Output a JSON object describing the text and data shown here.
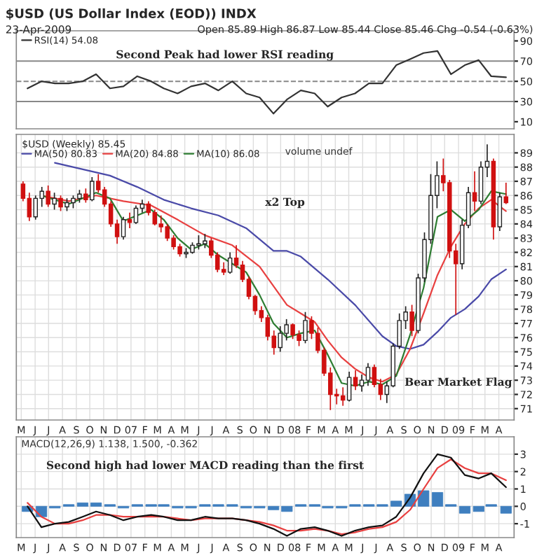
{
  "chart_data": [
    {
      "type": "line",
      "title": "$USD (US Dollar Index (EOD)) INDX",
      "subtitle": "23-Apr-2009",
      "annotations": [
        "Open 85.89 High 86.87 Low 85.44 Close 85.46 Chg -0.54 (-0.63%)",
        "Second Peak had lower RSI reading"
      ],
      "series": [
        {
          "name": "RSI(14) 54.08",
          "color": "#333333",
          "x": [
            "2006-05-15",
            "2006-06-15",
            "2006-07-15",
            "2006-08-15",
            "2006-09-15",
            "2006-10-15",
            "2006-11-15",
            "2006-12-15",
            "2007-01-15",
            "2007-02-15",
            "2007-03-15",
            "2007-04-15",
            "2007-05-15",
            "2007-06-15",
            "2007-07-15",
            "2007-08-15",
            "2007-09-15",
            "2007-10-15",
            "2007-11-15",
            "2007-12-15",
            "2008-01-15",
            "2008-02-15",
            "2008-03-15",
            "2008-04-15",
            "2008-05-15",
            "2008-06-15",
            "2008-07-15",
            "2008-08-15",
            "2008-09-15",
            "2008-10-15",
            "2008-11-15",
            "2008-12-15",
            "2009-01-15",
            "2009-02-15",
            "2009-03-15",
            "2009-04-17"
          ],
          "values": [
            43,
            50,
            48,
            48,
            50,
            57,
            43,
            45,
            55,
            50,
            43,
            38,
            45,
            48,
            41,
            50,
            38,
            34,
            18,
            32,
            41,
            38,
            25,
            34,
            38,
            48,
            48,
            66,
            72,
            78,
            80,
            57,
            66,
            71,
            55,
            54
          ]
        }
      ],
      "xlim": [
        "2006-04-20",
        "2009-05-05"
      ],
      "ylim": [
        3,
        100
      ],
      "yticks": [
        10,
        30,
        50,
        70,
        90
      ],
      "ref_lines": [
        {
          "axis": "y",
          "value": 70,
          "color": "#888888",
          "line_style": "solid"
        },
        {
          "axis": "y",
          "value": 30,
          "color": "#888888",
          "line_style": "solid"
        },
        {
          "axis": "y",
          "value": 50,
          "color": "#888888",
          "line_style": "dashed"
        }
      ],
      "legend": "top left",
      "tick_labels": "y"
    },
    {
      "type": "candlestick",
      "legend_title": "$USD (Weekly) 85.45",
      "x": [
        "2006-05-05",
        "2006-05-19",
        "2006-06-02",
        "2006-06-16",
        "2006-06-30",
        "2006-07-14",
        "2006-07-28",
        "2006-08-11",
        "2006-08-25",
        "2006-09-08",
        "2006-09-22",
        "2006-10-06",
        "2006-10-20",
        "2006-11-03",
        "2006-11-17",
        "2006-12-01",
        "2006-12-15",
        "2006-12-29",
        "2007-01-12",
        "2007-01-26",
        "2007-02-09",
        "2007-02-23",
        "2007-03-09",
        "2007-03-23",
        "2007-04-06",
        "2007-04-20",
        "2007-05-04",
        "2007-05-18",
        "2007-06-01",
        "2007-06-15",
        "2007-06-29",
        "2007-07-13",
        "2007-07-27",
        "2007-08-10",
        "2007-08-24",
        "2007-09-07",
        "2007-09-21",
        "2007-10-05",
        "2007-10-19",
        "2007-11-02",
        "2007-11-16",
        "2007-11-30",
        "2007-12-14",
        "2007-12-28",
        "2008-01-11",
        "2008-01-25",
        "2008-02-08",
        "2008-02-22",
        "2008-03-07",
        "2008-03-21",
        "2008-04-04",
        "2008-04-18",
        "2008-05-02",
        "2008-05-16",
        "2008-05-30",
        "2008-06-13",
        "2008-06-27",
        "2008-07-11",
        "2008-07-25",
        "2008-08-08",
        "2008-08-22",
        "2008-09-05",
        "2008-09-19",
        "2008-10-03",
        "2008-10-17",
        "2008-10-31",
        "2008-11-14",
        "2008-11-28",
        "2008-12-12",
        "2008-12-26",
        "2009-01-09",
        "2009-01-23",
        "2009-02-06",
        "2009-02-20",
        "2009-03-06",
        "2009-03-20",
        "2009-04-03",
        "2009-04-17"
      ],
      "ohlc": [
        [
          86.8,
          87.0,
          85.6,
          85.8
        ],
        [
          85.8,
          86.2,
          84.2,
          84.5
        ],
        [
          84.5,
          86.0,
          84.3,
          85.8
        ],
        [
          85.8,
          86.6,
          85.2,
          86.3
        ],
        [
          86.3,
          86.7,
          85.2,
          85.4
        ],
        [
          85.4,
          86.2,
          85.0,
          85.8
        ],
        [
          85.8,
          86.0,
          84.9,
          85.2
        ],
        [
          85.2,
          85.8,
          84.9,
          85.5
        ],
        [
          85.5,
          86.0,
          85.1,
          85.8
        ],
        [
          85.8,
          86.4,
          85.5,
          86.1
        ],
        [
          86.1,
          86.5,
          85.5,
          85.7
        ],
        [
          85.7,
          87.3,
          85.6,
          87.0
        ],
        [
          87.0,
          87.5,
          86.2,
          86.4
        ],
        [
          86.4,
          86.6,
          85.2,
          85.4
        ],
        [
          85.4,
          85.6,
          83.8,
          84.0
        ],
        [
          84.0,
          84.3,
          82.6,
          83.1
        ],
        [
          83.1,
          84.5,
          82.9,
          84.3
        ],
        [
          84.3,
          84.8,
          83.7,
          84.1
        ],
        [
          84.1,
          85.3,
          84.0,
          85.1
        ],
        [
          85.1,
          85.7,
          84.8,
          85.4
        ],
        [
          85.4,
          85.6,
          84.6,
          84.8
        ],
        [
          84.8,
          85.0,
          83.9,
          84.0
        ],
        [
          84.0,
          84.6,
          83.4,
          83.8
        ],
        [
          83.8,
          84.0,
          82.8,
          83.0
        ],
        [
          83.0,
          83.2,
          82.2,
          82.4
        ],
        [
          82.4,
          82.6,
          81.7,
          81.9
        ],
        [
          81.9,
          82.3,
          81.6,
          82.0
        ],
        [
          82.0,
          82.7,
          81.9,
          82.5
        ],
        [
          82.5,
          83.2,
          82.2,
          82.6
        ],
        [
          82.6,
          83.3,
          82.3,
          82.8
        ],
        [
          82.8,
          83.0,
          81.6,
          81.8
        ],
        [
          81.8,
          82.0,
          80.6,
          80.8
        ],
        [
          80.8,
          81.3,
          80.4,
          80.6
        ],
        [
          80.6,
          82.0,
          80.5,
          81.6
        ],
        [
          81.6,
          82.5,
          80.9,
          81.1
        ],
        [
          81.1,
          81.4,
          79.9,
          80.1
        ],
        [
          80.1,
          80.3,
          78.7,
          78.9
        ],
        [
          78.9,
          79.0,
          77.6,
          77.9
        ],
        [
          77.9,
          78.2,
          77.1,
          77.4
        ],
        [
          77.4,
          77.6,
          75.8,
          76.1
        ],
        [
          76.1,
          76.5,
          74.8,
          75.3
        ],
        [
          75.3,
          76.8,
          75.0,
          76.3
        ],
        [
          76.3,
          77.3,
          75.8,
          76.9
        ],
        [
          76.9,
          77.0,
          75.9,
          76.2
        ],
        [
          76.2,
          76.5,
          75.4,
          75.8
        ],
        [
          75.8,
          77.8,
          75.6,
          77.2
        ],
        [
          77.2,
          77.5,
          75.9,
          76.3
        ],
        [
          76.3,
          76.7,
          74.9,
          75.1
        ],
        [
          75.1,
          75.3,
          73.3,
          73.5
        ],
        [
          73.5,
          73.9,
          70.9,
          72.0
        ],
        [
          72.0,
          72.4,
          71.3,
          71.9
        ],
        [
          71.9,
          72.5,
          71.2,
          71.6
        ],
        [
          71.6,
          73.6,
          71.5,
          73.2
        ],
        [
          73.2,
          73.7,
          72.3,
          72.6
        ],
        [
          72.6,
          73.4,
          72.2,
          73.0
        ],
        [
          73.0,
          74.2,
          72.6,
          73.9
        ],
        [
          73.9,
          74.1,
          72.5,
          72.7
        ],
        [
          72.7,
          73.1,
          71.6,
          72.0
        ],
        [
          72.0,
          72.9,
          71.4,
          72.6
        ],
        [
          72.6,
          75.6,
          72.5,
          75.4
        ],
        [
          75.4,
          77.7,
          75.2,
          77.2
        ],
        [
          77.2,
          78.2,
          76.6,
          77.8
        ],
        [
          77.8,
          78.3,
          76.1,
          76.5
        ],
        [
          76.5,
          80.5,
          76.3,
          80.2
        ],
        [
          80.2,
          83.4,
          79.9,
          82.9
        ],
        [
          82.9,
          87.5,
          82.6,
          86.0
        ],
        [
          86.0,
          88.4,
          85.1,
          87.4
        ],
        [
          87.4,
          88.6,
          86.3,
          86.9
        ],
        [
          86.9,
          87.1,
          81.6,
          82.1
        ],
        [
          82.1,
          82.6,
          77.6,
          81.2
        ],
        [
          81.2,
          84.3,
          80.8,
          83.9
        ],
        [
          83.9,
          86.6,
          83.7,
          86.2
        ],
        [
          86.2,
          87.7,
          84.9,
          85.6
        ],
        [
          85.6,
          88.4,
          85.4,
          88.0
        ],
        [
          88.0,
          89.6,
          87.3,
          88.4
        ],
        [
          88.4,
          88.6,
          82.9,
          83.8
        ],
        [
          83.8,
          86.2,
          83.5,
          85.9
        ],
        [
          85.9,
          86.9,
          85.4,
          85.5
        ]
      ],
      "series": [
        {
          "type": "line",
          "name": "MA(50) 80.83",
          "color": "#4a4aa8",
          "x": [
            "2006-07-15",
            "2006-11-15",
            "2007-01-15",
            "2007-03-15",
            "2007-05-15",
            "2007-07-15",
            "2007-09-15",
            "2007-11-15",
            "2007-12-15",
            "2008-01-15",
            "2008-03-15",
            "2008-05-15",
            "2008-07-15",
            "2008-08-15",
            "2008-09-15",
            "2008-10-15",
            "2008-11-15",
            "2008-12-15",
            "2009-01-15",
            "2009-02-15",
            "2009-03-15",
            "2009-04-17"
          ],
          "values": [
            88.3,
            87.4,
            86.6,
            85.7,
            85.1,
            84.6,
            83.7,
            82.1,
            82.1,
            81.7,
            80.1,
            78.3,
            76.1,
            75.4,
            75.2,
            75.5,
            76.4,
            77.4,
            78.0,
            78.9,
            80.1,
            80.8
          ]
        },
        {
          "type": "line",
          "name": "MA(20) 84.88",
          "color": "#e84040",
          "x": [
            "2006-06-15",
            "2006-08-15",
            "2006-10-15",
            "2006-12-15",
            "2007-02-15",
            "2007-04-15",
            "2007-06-15",
            "2007-08-15",
            "2007-10-15",
            "2007-12-15",
            "2008-01-15",
            "2008-02-15",
            "2008-03-15",
            "2008-04-15",
            "2008-05-15",
            "2008-06-15",
            "2008-07-15",
            "2008-08-15",
            "2008-09-15",
            "2008-10-15",
            "2008-11-15",
            "2008-12-15",
            "2009-01-15",
            "2009-02-15",
            "2009-03-15",
            "2009-04-17"
          ],
          "values": [
            86.0,
            85.6,
            86.0,
            85.6,
            85.3,
            84.3,
            83.2,
            82.5,
            81.0,
            78.3,
            77.7,
            77.1,
            75.8,
            74.6,
            73.8,
            73.2,
            72.9,
            73.4,
            75.2,
            77.7,
            80.4,
            82.4,
            84.0,
            85.1,
            85.7,
            84.9
          ]
        },
        {
          "type": "line",
          "name": "MA(10) 86.08",
          "color": "#2e7d32",
          "x": [
            "2006-06-15",
            "2006-07-15",
            "2006-08-15",
            "2006-09-15",
            "2006-10-15",
            "2006-11-15",
            "2006-12-15",
            "2007-01-15",
            "2007-02-15",
            "2007-03-15",
            "2007-04-15",
            "2007-05-15",
            "2007-06-15",
            "2007-07-15",
            "2007-08-15",
            "2007-09-15",
            "2007-10-15",
            "2007-11-15",
            "2007-12-15",
            "2008-01-15",
            "2008-02-15",
            "2008-03-15",
            "2008-04-15",
            "2008-05-15",
            "2008-06-15",
            "2008-07-15",
            "2008-08-15",
            "2008-09-15",
            "2008-10-15",
            "2008-11-15",
            "2008-12-15",
            "2009-01-15",
            "2009-02-15",
            "2009-03-15",
            "2009-04-17"
          ],
          "values": [
            86.0,
            85.7,
            85.4,
            85.8,
            86.2,
            85.8,
            84.2,
            84.6,
            85.0,
            84.3,
            83.0,
            82.2,
            82.6,
            81.8,
            81.2,
            80.6,
            79.0,
            77.0,
            76.0,
            76.3,
            76.5,
            74.8,
            72.8,
            72.6,
            72.9,
            72.7,
            73.3,
            76.2,
            79.5,
            84.5,
            85.0,
            84.2,
            85.0,
            86.3,
            86.1
          ]
        }
      ],
      "annotations": [
        "volume undef",
        "x2 Top",
        "Bear Market Flag"
      ],
      "xlim": [
        "2006-04-20",
        "2009-05-05"
      ],
      "ylim": [
        70.2,
        90.3
      ],
      "yticks": [
        71,
        72,
        73,
        74,
        75,
        76,
        77,
        78,
        79,
        80,
        81,
        82,
        83,
        84,
        85,
        86,
        87,
        88,
        89
      ],
      "xticks": [
        {
          "value": "2006-05-01",
          "label": "M"
        },
        {
          "value": "2006-06-01",
          "label": "J"
        },
        {
          "value": "2006-07-01",
          "label": "J"
        },
        {
          "value": "2006-08-01",
          "label": "A"
        },
        {
          "value": "2006-09-01",
          "label": "S"
        },
        {
          "value": "2006-10-01",
          "label": "O"
        },
        {
          "value": "2006-11-01",
          "label": "N"
        },
        {
          "value": "2006-12-01",
          "label": "D"
        },
        {
          "value": "2007-01-01",
          "label": "07"
        },
        {
          "value": "2007-02-01",
          "label": "F"
        },
        {
          "value": "2007-03-01",
          "label": "M"
        },
        {
          "value": "2007-04-01",
          "label": "A"
        },
        {
          "value": "2007-05-01",
          "label": "M"
        },
        {
          "value": "2007-06-01",
          "label": "J"
        },
        {
          "value": "2007-07-01",
          "label": "J"
        },
        {
          "value": "2007-08-01",
          "label": "A"
        },
        {
          "value": "2007-09-01",
          "label": "S"
        },
        {
          "value": "2007-10-01",
          "label": "O"
        },
        {
          "value": "2007-11-01",
          "label": "N"
        },
        {
          "value": "2007-12-01",
          "label": "D"
        },
        {
          "value": "2008-01-01",
          "label": "08"
        },
        {
          "value": "2008-02-01",
          "label": "F"
        },
        {
          "value": "2008-03-01",
          "label": "M"
        },
        {
          "value": "2008-04-01",
          "label": "A"
        },
        {
          "value": "2008-05-01",
          "label": "M"
        },
        {
          "value": "2008-06-01",
          "label": "J"
        },
        {
          "value": "2008-07-01",
          "label": "J"
        },
        {
          "value": "2008-08-01",
          "label": "A"
        },
        {
          "value": "2008-09-01",
          "label": "S"
        },
        {
          "value": "2008-10-01",
          "label": "O"
        },
        {
          "value": "2008-11-01",
          "label": "N"
        },
        {
          "value": "2008-12-01",
          "label": "D"
        },
        {
          "value": "2009-01-01",
          "label": "09"
        },
        {
          "value": "2009-02-01",
          "label": "F"
        },
        {
          "value": "2009-03-01",
          "label": "M"
        },
        {
          "value": "2009-04-01",
          "label": "A"
        }
      ],
      "grid": true,
      "legend": "top left"
    },
    {
      "type": "line",
      "title": "MACD(12,26,9) 1.138, 1.500, -0.362",
      "annotations": [
        "Second high had lower MACD reading than the first"
      ],
      "series": [
        {
          "type": "bar",
          "color": "#3f7fbf",
          "x": [
            "2006-05-15",
            "2006-06-15",
            "2006-07-15",
            "2006-08-15",
            "2006-09-15",
            "2006-10-15",
            "2006-11-15",
            "2006-12-15",
            "2007-01-15",
            "2007-02-15",
            "2007-03-15",
            "2007-04-15",
            "2007-05-15",
            "2007-06-15",
            "2007-07-15",
            "2007-08-15",
            "2007-09-15",
            "2007-10-15",
            "2007-11-15",
            "2007-12-15",
            "2008-01-15",
            "2008-02-15",
            "2008-03-15",
            "2008-04-15",
            "2008-05-15",
            "2008-06-15",
            "2008-07-15",
            "2008-08-15",
            "2008-09-15",
            "2008-10-15",
            "2008-11-15",
            "2008-12-15",
            "2009-01-15",
            "2009-02-15",
            "2009-03-15",
            "2009-04-17"
          ],
          "values": [
            -0.3,
            -0.6,
            -0.1,
            0.1,
            0.2,
            0.2,
            0.1,
            -0.1,
            0.1,
            0.1,
            0.1,
            -0.1,
            -0.1,
            0.1,
            0.1,
            0.1,
            -0.1,
            -0.1,
            -0.2,
            -0.3,
            0.1,
            0.1,
            -0.1,
            -0.1,
            0.1,
            0.1,
            0.1,
            0.3,
            0.7,
            0.9,
            0.8,
            0.1,
            -0.4,
            -0.3,
            0.1,
            -0.4
          ]
        },
        {
          "type": "line",
          "color": "#e84040",
          "x": [
            "2006-05-15",
            "2006-06-15",
            "2006-07-15",
            "2006-08-15",
            "2006-09-15",
            "2006-10-15",
            "2006-11-15",
            "2006-12-15",
            "2007-01-15",
            "2007-02-15",
            "2007-03-15",
            "2007-04-15",
            "2007-05-15",
            "2007-06-15",
            "2007-07-15",
            "2007-08-15",
            "2007-09-15",
            "2007-10-15",
            "2007-11-15",
            "2007-12-15",
            "2008-01-15",
            "2008-02-15",
            "2008-03-15",
            "2008-04-15",
            "2008-05-15",
            "2008-06-15",
            "2008-07-15",
            "2008-08-15",
            "2008-09-15",
            "2008-10-15",
            "2008-11-15",
            "2008-12-15",
            "2009-01-15",
            "2009-02-15",
            "2009-03-15",
            "2009-04-17"
          ],
          "values": [
            0.2,
            -0.6,
            -1.0,
            -1.0,
            -0.8,
            -0.5,
            -0.5,
            -0.6,
            -0.6,
            -0.6,
            -0.6,
            -0.7,
            -0.8,
            -0.7,
            -0.7,
            -0.7,
            -0.8,
            -0.9,
            -1.1,
            -1.4,
            -1.4,
            -1.3,
            -1.4,
            -1.6,
            -1.5,
            -1.3,
            -1.2,
            -0.9,
            -0.2,
            1.0,
            2.2,
            2.7,
            2.2,
            1.9,
            1.9,
            1.5
          ]
        },
        {
          "type": "line",
          "color": "#111111",
          "x": [
            "2006-05-15",
            "2006-06-15",
            "2006-07-15",
            "2006-08-15",
            "2006-09-15",
            "2006-10-15",
            "2006-11-15",
            "2006-12-15",
            "2007-01-15",
            "2007-02-15",
            "2007-03-15",
            "2007-04-15",
            "2007-05-15",
            "2007-06-15",
            "2007-07-15",
            "2007-08-15",
            "2007-09-15",
            "2007-10-15",
            "2007-11-15",
            "2007-12-15",
            "2008-01-15",
            "2008-02-15",
            "2008-03-15",
            "2008-04-15",
            "2008-05-15",
            "2008-06-15",
            "2008-07-15",
            "2008-08-15",
            "2008-09-15",
            "2008-10-15",
            "2008-11-15",
            "2008-12-15",
            "2009-01-15",
            "2009-02-15",
            "2009-03-15",
            "2009-04-17"
          ],
          "values": [
            0,
            -1.2,
            -1.0,
            -0.9,
            -0.6,
            -0.3,
            -0.5,
            -0.8,
            -0.6,
            -0.5,
            -0.6,
            -0.8,
            -0.8,
            -0.6,
            -0.7,
            -0.7,
            -0.8,
            -1.0,
            -1.3,
            -1.7,
            -1.3,
            -1.2,
            -1.4,
            -1.7,
            -1.4,
            -1.2,
            -1.1,
            -0.6,
            0.5,
            1.9,
            3.0,
            2.8,
            1.8,
            1.6,
            1.9,
            1.1
          ]
        }
      ],
      "xlim": [
        "2006-04-20",
        "2009-05-05"
      ],
      "ylim": [
        -1.8,
        4.0
      ],
      "yticks": [
        {
          "value": -1,
          "label": "-1"
        },
        0,
        1,
        2,
        3
      ],
      "xticks": [
        {
          "value": "2006-05-01",
          "label": "M"
        },
        {
          "value": "2006-06-01",
          "label": "J"
        },
        {
          "value": "2006-07-01",
          "label": "J"
        },
        {
          "value": "2006-08-01",
          "label": "A"
        },
        {
          "value": "2006-09-01",
          "label": "S"
        },
        {
          "value": "2006-10-01",
          "label": "O"
        },
        {
          "value": "2006-11-01",
          "label": "N"
        },
        {
          "value": "2006-12-01",
          "label": "D"
        },
        {
          "value": "2007-01-01",
          "label": "07"
        },
        {
          "value": "2007-02-01",
          "label": "F"
        },
        {
          "value": "2007-03-01",
          "label": "M"
        },
        {
          "value": "2007-04-01",
          "label": "A"
        },
        {
          "value": "2007-05-01",
          "label": "M"
        },
        {
          "value": "2007-06-01",
          "label": "J"
        },
        {
          "value": "2007-07-01",
          "label": "J"
        },
        {
          "value": "2007-08-01",
          "label": "A"
        },
        {
          "value": "2007-09-01",
          "label": "S"
        },
        {
          "value": "2007-10-01",
          "label": "O"
        },
        {
          "value": "2007-11-01",
          "label": "N"
        },
        {
          "value": "2007-12-01",
          "label": "D"
        },
        {
          "value": "2008-01-01",
          "label": "08"
        },
        {
          "value": "2008-02-01",
          "label": "F"
        },
        {
          "value": "2008-03-01",
          "label": "M"
        },
        {
          "value": "2008-04-01",
          "label": "A"
        },
        {
          "value": "2008-05-01",
          "label": "M"
        },
        {
          "value": "2008-06-01",
          "label": "J"
        },
        {
          "value": "2008-07-01",
          "label": "J"
        },
        {
          "value": "2008-08-01",
          "label": "A"
        },
        {
          "value": "2008-09-01",
          "label": "S"
        },
        {
          "value": "2008-10-01",
          "label": "O"
        },
        {
          "value": "2008-11-01",
          "label": "N"
        },
        {
          "value": "2008-12-01",
          "label": "D"
        },
        {
          "value": "2009-01-01",
          "label": "09"
        },
        {
          "value": "2009-02-01",
          "label": "F"
        },
        {
          "value": "2009-03-01",
          "label": "M"
        },
        {
          "value": "2009-04-01",
          "label": "A"
        }
      ],
      "grid": true
    }
  ]
}
